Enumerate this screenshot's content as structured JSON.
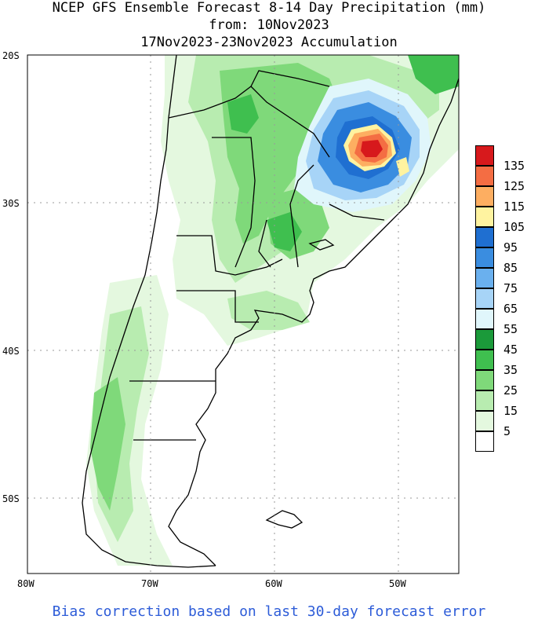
{
  "title": {
    "line1": "NCEP GFS Ensemble Forecast 8-14 Day Precipitation (mm)",
    "line2": "from: 10Nov2023",
    "line3": "17Nov2023-23Nov2023 Accumulation"
  },
  "axes": {
    "lat_labels": [
      "20S",
      "30S",
      "40S",
      "50S"
    ],
    "lon_labels": [
      "80W",
      "70W",
      "60W",
      "50W"
    ]
  },
  "legend": {
    "labels": [
      "135",
      "125",
      "115",
      "105",
      "95",
      "85",
      "75",
      "65",
      "55",
      "45",
      "35",
      "25",
      "15",
      "5"
    ],
    "colors": [
      "#d7191c",
      "#f46d43",
      "#fdae61",
      "#fff3a0",
      "#1f6fd1",
      "#3a8de0",
      "#6ab0ee",
      "#a7d4f7",
      "#e0f6fb",
      "#1b9a3a",
      "#3fbf4f",
      "#7fd97a",
      "#b8ecb0",
      "#e4f8df",
      "#ffffff"
    ]
  },
  "footer": "Bias correction based on last 30-day forecast error"
}
